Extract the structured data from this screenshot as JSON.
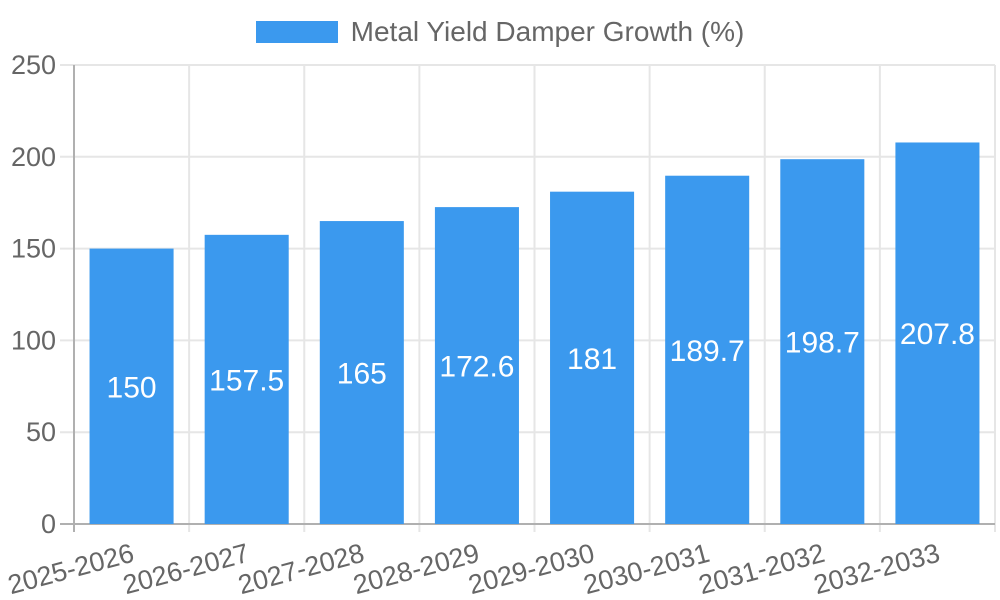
{
  "chart_data": {
    "type": "bar",
    "title": "Metal Yield Damper Growth (%)",
    "legend": {
      "label": "Metal Yield Damper Growth (%)",
      "position": "top"
    },
    "categories": [
      "2025-2026",
      "2026-2027",
      "2027-2028",
      "2028-2029",
      "2029-2030",
      "2030-2031",
      "2031-2032",
      "2032-2033"
    ],
    "values": [
      150,
      157.5,
      165,
      172.6,
      181,
      189.7,
      198.7,
      207.8
    ],
    "value_labels": [
      "150",
      "157.5",
      "165",
      "172.6",
      "181",
      "189.7",
      "198.7",
      "207.8"
    ],
    "xlabel": "",
    "ylabel": "",
    "ylim": [
      0,
      250
    ],
    "yticks": [
      0,
      50,
      100,
      150,
      200,
      250
    ],
    "grid": true,
    "x_label_rotation_deg": -15,
    "colors": {
      "bar": "#3b99ee",
      "bar_label": "#ffffff",
      "axis_text": "#666666",
      "axis_line": "#b0b0b0",
      "gridline": "#e6e6e6",
      "background": "#ffffff"
    }
  }
}
